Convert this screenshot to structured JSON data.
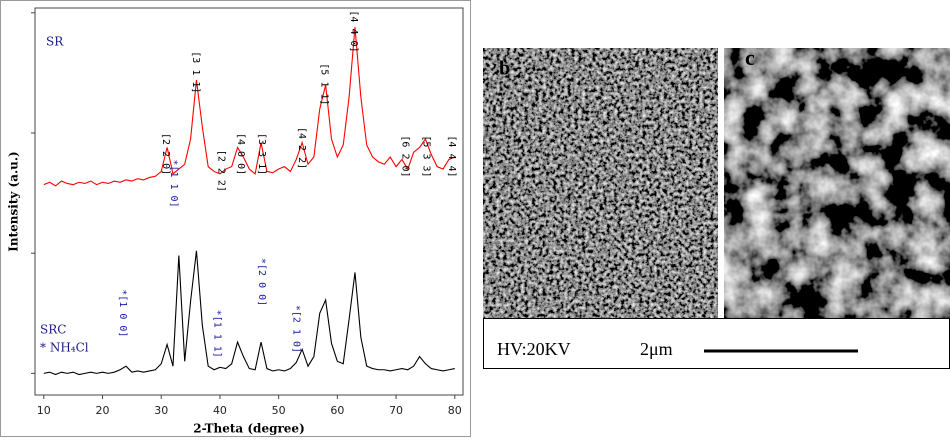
{
  "chart_data": {
    "type": "line",
    "x_label": "2-Theta (degree)",
    "y_label": "Intensity (a.u.)",
    "x": [
      10,
      11,
      12,
      13,
      14,
      15,
      16,
      17,
      18,
      19,
      20,
      21,
      22,
      23,
      24,
      25,
      26,
      27,
      28,
      29,
      30,
      31,
      32,
      33,
      34,
      35,
      36,
      37,
      38,
      39,
      40,
      41,
      42,
      43,
      44,
      45,
      46,
      47,
      48,
      49,
      50,
      51,
      52,
      53,
      54,
      55,
      56,
      57,
      58,
      59,
      60,
      61,
      62,
      63,
      64,
      65,
      66,
      67,
      68,
      69,
      70,
      71,
      72,
      73,
      74,
      75,
      76,
      77,
      78,
      79,
      80
    ],
    "series": [
      {
        "name": "SR",
        "color": "#ff0000",
        "label_color": "#1a1a8c",
        "values": [
          1.57,
          1.59,
          1.56,
          1.6,
          1.58,
          1.57,
          1.59,
          1.58,
          1.6,
          1.57,
          1.59,
          1.58,
          1.6,
          1.59,
          1.61,
          1.6,
          1.62,
          1.61,
          1.63,
          1.64,
          1.68,
          1.88,
          1.66,
          1.7,
          1.74,
          1.95,
          2.44,
          2.05,
          1.72,
          1.68,
          1.66,
          1.7,
          1.72,
          1.88,
          1.8,
          1.7,
          1.66,
          1.92,
          1.68,
          1.67,
          1.7,
          1.72,
          1.68,
          1.78,
          1.92,
          1.74,
          1.8,
          2.2,
          2.4,
          1.95,
          1.8,
          1.9,
          2.3,
          2.88,
          2.3,
          1.9,
          1.8,
          1.76,
          1.74,
          1.8,
          1.72,
          1.78,
          1.7,
          1.84,
          1.88,
          1.95,
          1.82,
          1.72,
          1.7,
          1.78,
          1.8
        ]
      },
      {
        "name": "SRC",
        "color": "#000000",
        "label_color": "#1a1a8c",
        "values": [
          0.0,
          0.01,
          -0.01,
          0.01,
          0.0,
          0.01,
          -0.01,
          0.0,
          0.01,
          0.0,
          0.01,
          0.0,
          0.01,
          0.03,
          0.06,
          0.01,
          0.02,
          0.01,
          0.02,
          0.03,
          0.08,
          0.24,
          0.06,
          0.98,
          0.1,
          0.6,
          1.02,
          0.4,
          0.06,
          0.03,
          0.05,
          0.04,
          0.08,
          0.26,
          0.14,
          0.04,
          0.03,
          0.26,
          0.04,
          0.02,
          0.03,
          0.02,
          0.04,
          0.09,
          0.2,
          0.06,
          0.14,
          0.5,
          0.61,
          0.25,
          0.1,
          0.08,
          0.45,
          0.84,
          0.3,
          0.06,
          0.04,
          0.03,
          0.03,
          0.02,
          0.03,
          0.04,
          0.03,
          0.06,
          0.14,
          0.08,
          0.04,
          0.03,
          0.02,
          0.03,
          0.04
        ]
      }
    ],
    "marker_note": "* NH₄Cl",
    "annotations": [
      {
        "text": "[2 2 0]",
        "x": 30.8,
        "y": 2.0,
        "color": "#000000"
      },
      {
        "text": "[3 1 1]",
        "x": 35.9,
        "y": 2.68,
        "color": "#000000"
      },
      {
        "text": "[2 2 2]",
        "x": 40.3,
        "y": 1.86,
        "color": "#000000"
      },
      {
        "text": "[4 0 0]",
        "x": 43.6,
        "y": 2.0,
        "color": "#000000"
      },
      {
        "text": "[3 3 1]",
        "x": 47.2,
        "y": 2.0,
        "color": "#000000"
      },
      {
        "text": "[4 2 2]",
        "x": 54.0,
        "y": 2.05,
        "color": "#000000"
      },
      {
        "text": "[5 1 1]",
        "x": 57.8,
        "y": 2.58,
        "color": "#000000"
      },
      {
        "text": "[4 4 0]",
        "x": 62.8,
        "y": 3.02,
        "color": "#000000"
      },
      {
        "text": "[6 2 0]",
        "x": 71.6,
        "y": 1.98,
        "color": "#000000"
      },
      {
        "text": "[5 3 3]",
        "x": 75.2,
        "y": 1.98,
        "color": "#000000"
      },
      {
        "text": "[4 4 4]",
        "x": 79.5,
        "y": 1.98,
        "color": "#000000"
      },
      {
        "text": "*[1 0 0]",
        "x": 23.5,
        "y": 0.7,
        "color": "#1a1aa8"
      },
      {
        "text": "*[1 1 0]",
        "x": 32.2,
        "y": 1.78,
        "color": "#1a1aa8"
      },
      {
        "text": "*[1 1 1]",
        "x": 39.6,
        "y": 0.53,
        "color": "#1a1aa8"
      },
      {
        "text": "*[2 0 0]",
        "x": 47.2,
        "y": 0.96,
        "color": "#1a1aa8"
      },
      {
        "text": "*[2 1 0]",
        "x": 53.0,
        "y": 0.57,
        "color": "#1a1aa8"
      }
    ],
    "xlim": [
      8.5,
      81.4
    ],
    "ylim": [
      -0.18,
      3.04
    ],
    "xticks": [
      10,
      20,
      30,
      40,
      50,
      60,
      70,
      80
    ],
    "yticks": [
      0,
      1,
      2,
      3
    ]
  },
  "images": [
    {
      "label": "b"
    },
    {
      "label": "c"
    }
  ],
  "scale_bar": {
    "voltage": "HV:20KV",
    "length": "2μm"
  }
}
